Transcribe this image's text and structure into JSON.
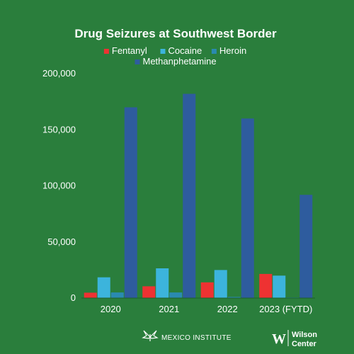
{
  "chart_data": {
    "type": "bar",
    "title": "Drug Seizures at Southwest Border",
    "categories": [
      "2020",
      "2021",
      "2022",
      "2023 (FYTD)"
    ],
    "series": [
      {
        "name": "Fentanyl",
        "color": "#ee3232",
        "values": [
          4800,
          10500,
          14000,
          21500
        ]
      },
      {
        "name": "Cocaine",
        "color": "#3cb4dc",
        "values": [
          18500,
          26500,
          25000,
          20000
        ]
      },
      {
        "name": "Heroin",
        "color": "#2a8ab0",
        "values": [
          5000,
          5000,
          1000,
          500
        ]
      },
      {
        "name": "Methanphetamine",
        "color": "#2e5c9e",
        "values": [
          170000,
          182000,
          160000,
          92000
        ]
      }
    ],
    "ylim": [
      0,
      200000
    ],
    "yticks": [
      0,
      50000,
      100000,
      150000,
      200000
    ],
    "ytick_labels": [
      "0",
      "50,000",
      "100,000",
      "150,000",
      "200,000"
    ],
    "grid": false,
    "legend_position": "top-center"
  },
  "footer": {
    "left_logo": "MEXICO INSTITUTE",
    "right_logo_line1": "Wilson",
    "right_logo_line2": "Center"
  },
  "colors": {
    "background": "#2a7e3c",
    "axis": "#1d5e2c"
  }
}
